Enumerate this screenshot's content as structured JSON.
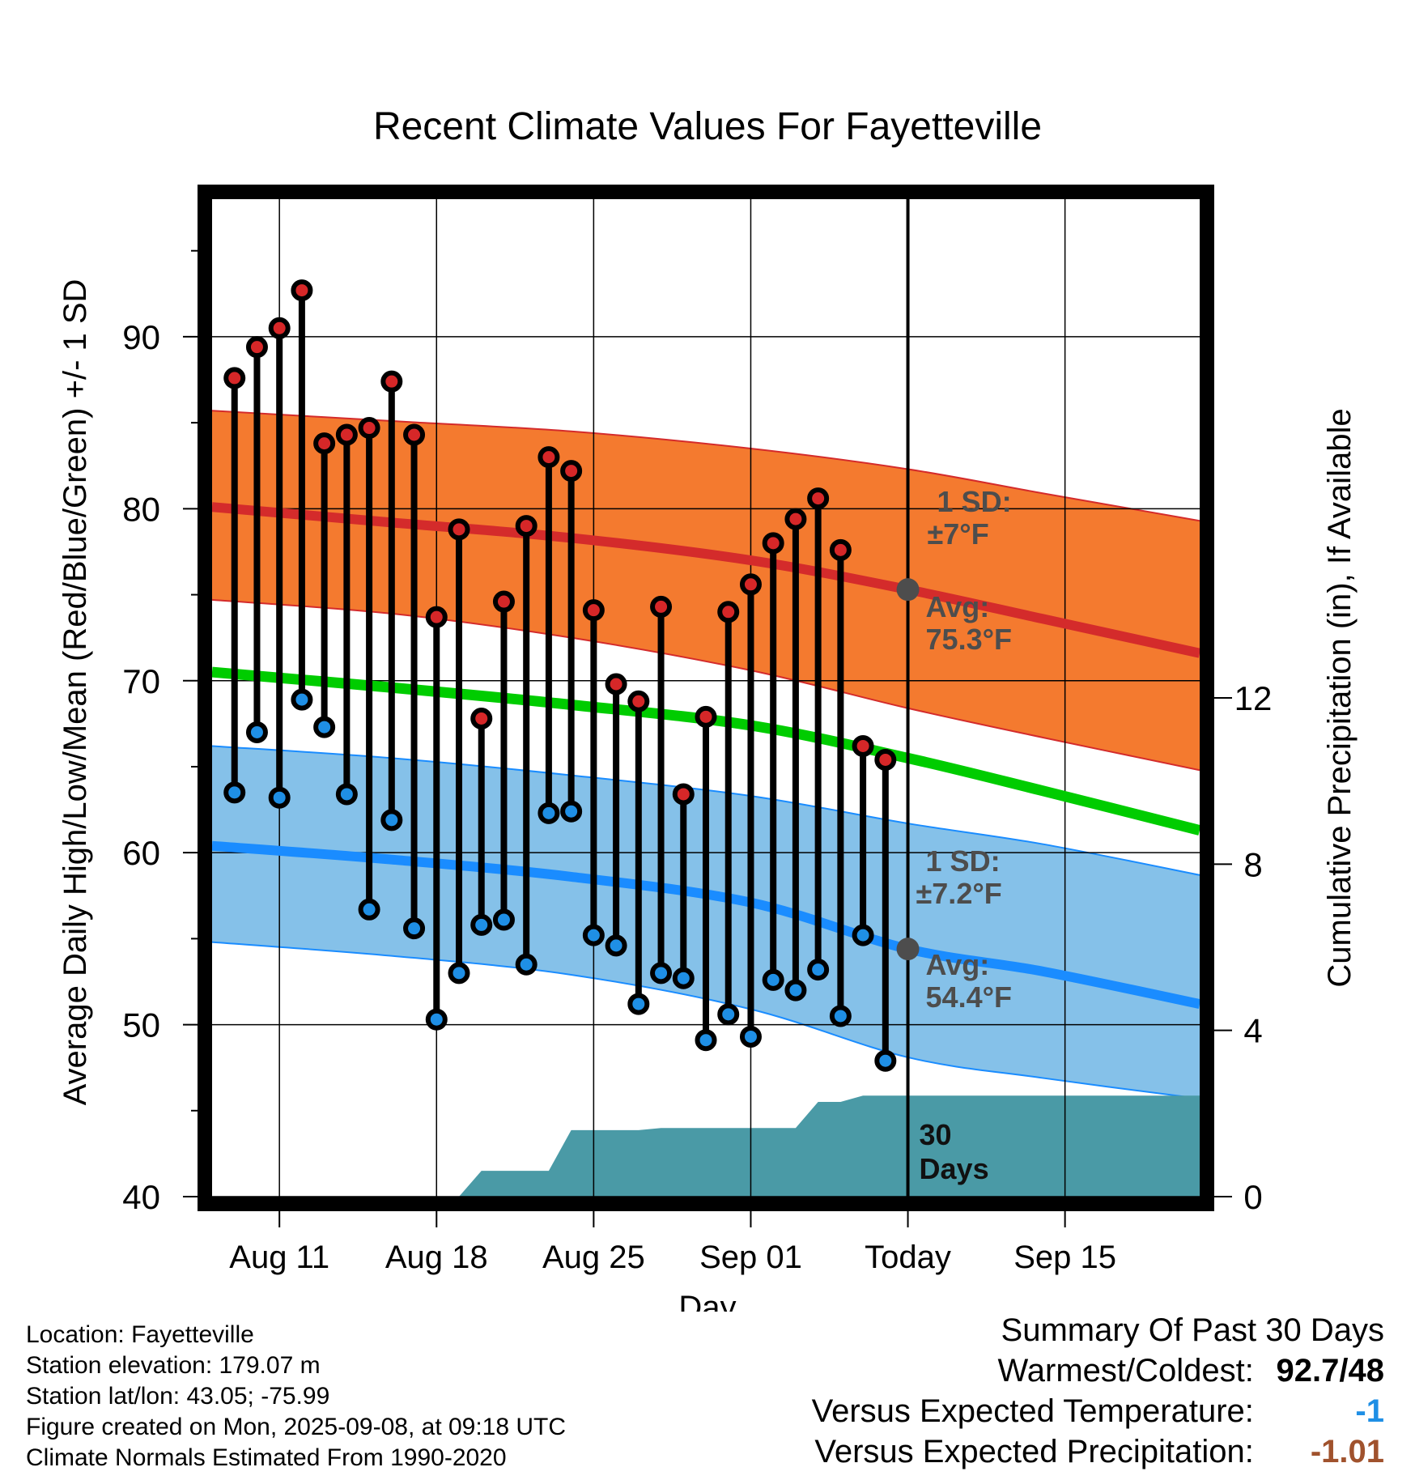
{
  "colors": {
    "high": "#d62728",
    "low": "#1f8fe5",
    "mean_line": "#00cc00",
    "high_band": "#f47a2f",
    "high_line": "#d42b2b",
    "low_band": "#85c1e9",
    "low_line": "#1a8cff",
    "precip": "#4a9aa6",
    "annotation": "#4d4d4d",
    "temp_anomaly": "#1f8fe5",
    "precip_anomaly": "#a0522d"
  },
  "chart_data": {
    "type": "line",
    "title": "Recent Climate Values For Fayetteville",
    "xlabel": "Day",
    "ylabel": "Average Daily High/Low/Mean (Red/Blue/Green) +/- 1 SD",
    "y2label": "Cumulative Precipitation (in), If Available",
    "ylim": [
      40,
      98
    ],
    "y2lim": [
      0,
      24
    ],
    "yticks": [
      40,
      50,
      60,
      70,
      80,
      90
    ],
    "y2ticks": [
      0,
      4,
      8,
      12
    ],
    "xlim": [
      "2025-08-08",
      "2025-09-21"
    ],
    "xticks": [
      {
        "date": "2025-08-11",
        "label": "Aug 11"
      },
      {
        "date": "2025-08-18",
        "label": "Aug 18"
      },
      {
        "date": "2025-08-25",
        "label": "Aug 25"
      },
      {
        "date": "2025-09-01",
        "label": "Sep 01"
      },
      {
        "date": "2025-09-08",
        "label": "Today"
      },
      {
        "date": "2025-09-15",
        "label": "Sep 15"
      }
    ],
    "grid": true,
    "today": "2025-09-08",
    "days": [
      "2025-08-09",
      "2025-08-10",
      "2025-08-11",
      "2025-08-12",
      "2025-08-13",
      "2025-08-14",
      "2025-08-15",
      "2025-08-16",
      "2025-08-17",
      "2025-08-18",
      "2025-08-19",
      "2025-08-20",
      "2025-08-21",
      "2025-08-22",
      "2025-08-23",
      "2025-08-24",
      "2025-08-25",
      "2025-08-26",
      "2025-08-27",
      "2025-08-28",
      "2025-08-29",
      "2025-08-30",
      "2025-08-31",
      "2025-09-01",
      "2025-09-02",
      "2025-09-03",
      "2025-09-04",
      "2025-09-05",
      "2025-09-06",
      "2025-09-07"
    ],
    "highs": [
      87.6,
      89.4,
      90.5,
      92.7,
      83.8,
      84.3,
      84.7,
      87.4,
      84.3,
      73.7,
      78.8,
      67.8,
      74.6,
      79.0,
      83.0,
      82.2,
      74.1,
      69.8,
      68.8,
      74.3,
      63.4,
      67.9,
      74.0,
      75.6,
      78.0,
      79.4,
      80.6,
      77.6,
      66.2,
      65.4
    ],
    "lows": [
      63.5,
      67.0,
      63.2,
      68.9,
      67.3,
      63.4,
      56.7,
      61.9,
      55.6,
      50.3,
      53.0,
      55.8,
      56.1,
      53.5,
      62.3,
      62.4,
      55.2,
      54.6,
      51.2,
      53.0,
      52.7,
      49.1,
      50.6,
      49.3,
      52.6,
      52.0,
      53.2,
      50.5,
      55.2,
      47.9
    ],
    "normals": {
      "x": [
        "2025-08-08",
        "2025-08-16",
        "2025-08-24",
        "2025-09-01",
        "2025-09-08",
        "2025-09-14",
        "2025-09-21"
      ],
      "high_mean": [
        80.1,
        79.2,
        78.3,
        77.0,
        75.3,
        73.6,
        71.6
      ],
      "high_band_upper": [
        85.7,
        85.1,
        84.5,
        83.5,
        82.3,
        80.9,
        79.3
      ],
      "high_band_lower": [
        74.7,
        73.9,
        72.5,
        70.6,
        68.4,
        66.7,
        64.8
      ],
      "mean": [
        70.5,
        69.6,
        68.6,
        67.4,
        65.5,
        63.6,
        61.3
      ],
      "low_mean": [
        60.4,
        59.6,
        58.6,
        57.1,
        54.4,
        53.1,
        51.2
      ],
      "low_band_upper": [
        66.2,
        65.5,
        64.5,
        63.3,
        61.7,
        60.5,
        58.7
      ],
      "low_band_lower": [
        54.8,
        54.0,
        52.9,
        50.9,
        48.1,
        46.9,
        45.7
      ]
    },
    "precip": {
      "steps": [
        {
          "x": "2025-08-09",
          "y": 0
        },
        {
          "x": "2025-08-19",
          "y": 0
        },
        {
          "x": "2025-08-20",
          "y": 0.62
        },
        {
          "x": "2025-08-22",
          "y": 0.62
        },
        {
          "x": "2025-08-23",
          "y": 0.62
        },
        {
          "x": "2025-08-24",
          "y": 1.6
        },
        {
          "x": "2025-08-27",
          "y": 1.6
        },
        {
          "x": "2025-08-28",
          "y": 1.65
        },
        {
          "x": "2025-09-02",
          "y": 1.65
        },
        {
          "x": "2025-09-03",
          "y": 1.65
        },
        {
          "x": "2025-09-04",
          "y": 2.28
        },
        {
          "x": "2025-09-05",
          "y": 2.28
        },
        {
          "x": "2025-09-06",
          "y": 2.43
        },
        {
          "x": "2025-09-21",
          "y": 2.43
        }
      ]
    },
    "annotations": {
      "high_sd": [
        "1 SD:",
        "±7°F"
      ],
      "high_avg": [
        "Avg:",
        "75.3°F"
      ],
      "low_sd": [
        "1 SD:",
        "±7.2°F"
      ],
      "low_avg": [
        "Avg:",
        "54.4°F"
      ],
      "precip_label": [
        "30",
        "Days"
      ],
      "high_avg_value": 75.3,
      "low_avg_value": 54.4
    }
  },
  "info": {
    "location": "Location: Fayetteville",
    "elevation": "Station elevation: 179.07 m",
    "latlon": "Station lat/lon: 43.05; -75.99",
    "created": "Figure created on Mon, 2025-09-08, at 09:18 UTC",
    "normals": "Climate Normals Estimated From 1990-2020"
  },
  "summary": {
    "title": "Summary Of Past 30 Days",
    "warmest_label": "Warmest/Coldest:",
    "warmest_value": "92.7/48",
    "temp_label": "Versus Expected Temperature:",
    "temp_value": "-1",
    "precip_label": "Versus Expected Precipitation:",
    "precip_value": "-1.01"
  }
}
